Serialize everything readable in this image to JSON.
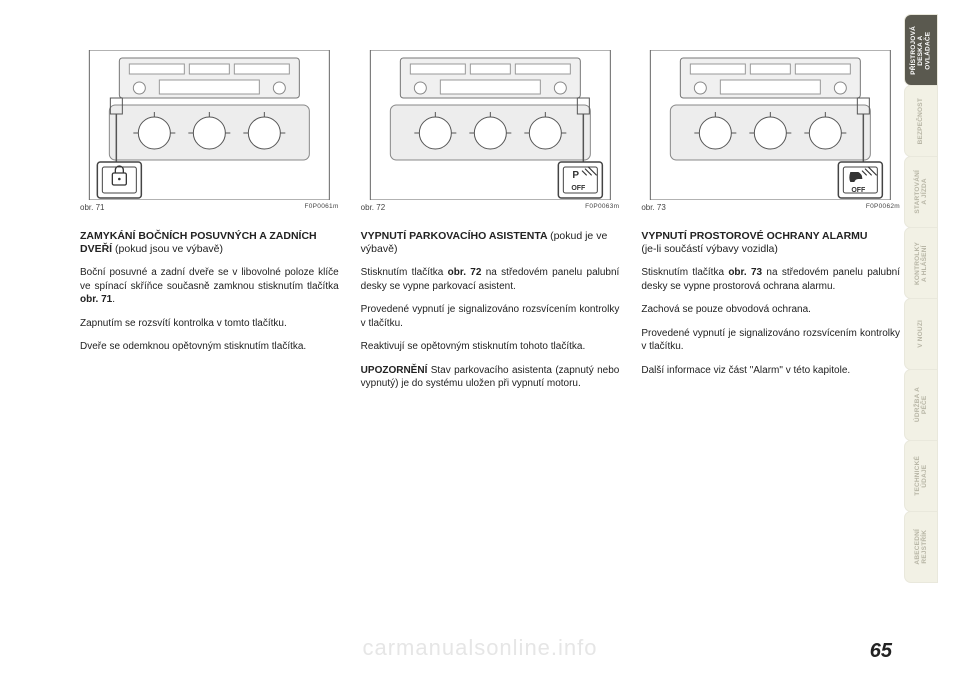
{
  "tabs": [
    {
      "label": "PŘÍSTROJOVÁ\nDESKA A\nOVLÁDAČE",
      "active": true
    },
    {
      "label": "BEZPEČNOST",
      "active": false
    },
    {
      "label": "STARTOVÁNÍ\nA JÍZDA",
      "active": false
    },
    {
      "label": "KONTROLKY\nA HLÁŠENÍ",
      "active": false
    },
    {
      "label": "V NOUZI",
      "active": false
    },
    {
      "label": "ÚDRŽBA A\nPÉČE",
      "active": false
    },
    {
      "label": "TECHNICKÉ\nÚDAJE",
      "active": false
    },
    {
      "label": "ABECEDNÍ\nREJSTŘÍK",
      "active": false
    }
  ],
  "columns": [
    {
      "fig": {
        "caption_left": "obr. 71",
        "caption_right": "F0P0061m",
        "button": "door-lock"
      },
      "heading": "ZAMYKÁNÍ BOČNÍCH POSUVNÝCH A ZADNÍCH DVEŘÍ",
      "heading_paren": "(pokud jsou ve výbavě)",
      "paras": [
        {
          "pre": "Boční posuvné a zadní dveře se v libovolné poloze klíče ve spínací skříňce současně zamknou stisknutím tlačítka ",
          "bold": "obr. 71",
          "post": "."
        },
        {
          "text": "Zapnutím se rozsvítí kontrolka v tomto tlačítku."
        },
        {
          "text": "Dveře se odemknou opětovným stisknutím tlačítka."
        }
      ]
    },
    {
      "fig": {
        "caption_left": "obr. 72",
        "caption_right": "F0P0063m",
        "button": "p-off"
      },
      "heading": "VYPNUTÍ PARKOVACÍHO ASISTENTA",
      "heading_paren": "(pokud je ve výbavě)",
      "paras": [
        {
          "pre": "Stisknutím tlačítka ",
          "bold": "obr. 72",
          "post": " na středovém panelu palubní desky se vypne parkovací asistent."
        },
        {
          "text": "Provedené vypnutí je signalizováno rozsvícením kontrolky v tlačítku."
        },
        {
          "text": "Reaktivují se opětovným stisknutím tohoto tlačítka."
        },
        {
          "prebold": "UPOZORNĚNÍ",
          "post": " Stav parkovacího asistenta (zapnutý nebo vypnutý) je do systému uložen při vypnutí motoru."
        }
      ]
    },
    {
      "fig": {
        "caption_left": "obr. 73",
        "caption_right": "F0P0062m",
        "button": "alarm-off"
      },
      "heading": "VYPNUTÍ PROSTOROVÉ OCHRANY ALARMU",
      "heading_paren": "(je-li součástí výbavy vozidla)",
      "paras": [
        {
          "pre": "Stisknutím tlačítka ",
          "bold": "obr. 73",
          "post": " na středovém panelu palubní desky se vypne prostorová ochrana alarmu."
        },
        {
          "text": "Zachová se pouze obvodová ochrana."
        },
        {
          "text": "Provedené vypnutí je signalizováno rozsvícením kontrolky v tlačítku."
        },
        {
          "text": "Další informace viz část \"Alarm\" v této kapitole."
        }
      ]
    }
  ],
  "page_number": "65",
  "watermark": "carmanualsonline.info",
  "colors": {
    "tab_active_bg": "#5a594f",
    "tab_bg": "#f2f1e5",
    "tab_text": "#b8b6a6",
    "text": "#222222",
    "watermark": "#e6e6e6",
    "svg_line": "#555555",
    "svg_fill": "#e8e8e8"
  }
}
